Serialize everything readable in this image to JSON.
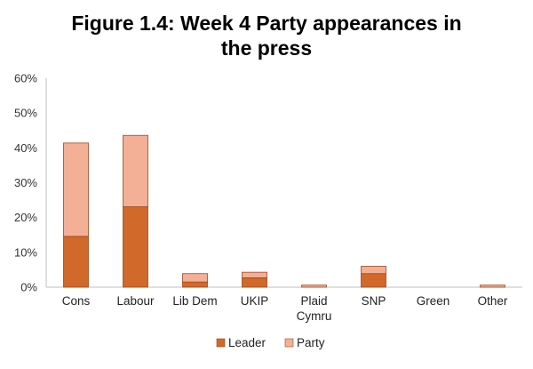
{
  "chart_data": {
    "type": "bar",
    "stacked": true,
    "title": [
      "Figure 1.4: Week 4 Party appearances in",
      "the press"
    ],
    "categories": [
      "Cons",
      "Labour",
      "Lib Dem",
      "UKIP",
      "Plaid Cymru",
      "SNP",
      "Green",
      "Other"
    ],
    "series": [
      {
        "name": "Leader",
        "color": "#D0692A",
        "values": [
          14.6,
          23.1,
          1.5,
          2.7,
          0,
          3.9,
          0,
          0
        ]
      },
      {
        "name": "Party",
        "color": "#F4B096",
        "values": [
          26.8,
          20.5,
          2.4,
          1.6,
          0.6,
          2.1,
          0,
          0.6
        ]
      }
    ],
    "yticks": [
      "0%",
      "10%",
      "20%",
      "30%",
      "40%",
      "50%",
      "60%"
    ],
    "ylim": [
      0,
      60
    ],
    "grid": false,
    "legend": "bottom-center"
  }
}
